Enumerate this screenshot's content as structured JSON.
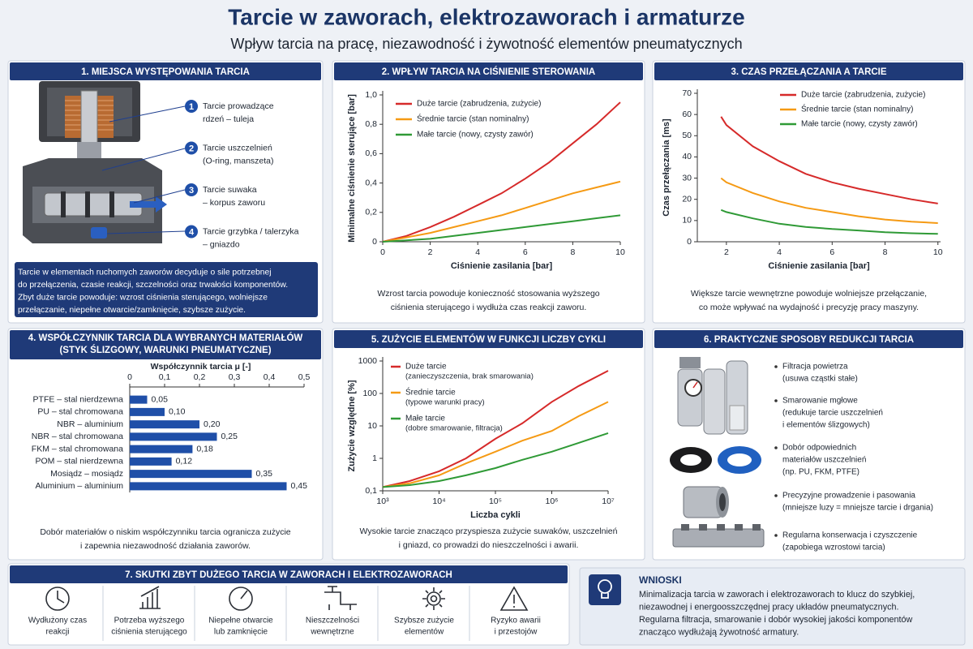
{
  "header": {
    "title": "Tarcie w zaworach, elektrozaworach i armaturze",
    "subtitle": "Wpływ tarcia na pracę, niezawodność i żywotność elementów pneumatycznych"
  },
  "panel1": {
    "title": "1. MIEJSCA WYSTĘPOWANIA TARCIA",
    "items": [
      {
        "number": 1,
        "title": "Tarcie prowadzące",
        "detail": "rdzeń – tuleja"
      },
      {
        "number": 2,
        "title": "Tarcie uszczelnień",
        "detail": "(O-ring, manszeta)"
      },
      {
        "number": 3,
        "title": "Tarcie suwaka",
        "detail": "– korpus zaworu"
      },
      {
        "number": 4,
        "title": "Tarcie grzybka / talerzyka",
        "detail": "– gniazdo"
      }
    ],
    "note": [
      "Tarcie w elementach ruchomych zaworów decyduje o sile potrzebnej",
      "do przełączenia, czasie reakcji, szczelności oraz trwałości komponentów.",
      "Zbyt duże tarcie powoduje: wzrost ciśnienia sterującego, wolniejsze",
      "przełączanie, niepełne otwarcie/zamknięcie, szybsze zużycie."
    ]
  },
  "chart_data": [
    {
      "type": "line",
      "title": "2. WPŁYW TARCIA NA CIŚNIENIE STEROWANIA",
      "xlabel": "Ciśnienie zasilania [bar]",
      "ylabel": "Minimalne ciśnienie sterujące [bar]",
      "x": [
        0,
        1,
        2,
        3,
        4,
        5,
        6,
        7,
        8,
        9,
        10
      ],
      "xlim": [
        0,
        10
      ],
      "xticks": [
        0,
        2,
        4,
        6,
        8,
        10
      ],
      "ylim": [
        0,
        1
      ],
      "yticks": [
        0,
        {
          "value": 0.2,
          "label": "0,2"
        },
        {
          "value": 0.4,
          "label": "0,4"
        },
        {
          "value": 0.6,
          "label": "0,6"
        },
        {
          "value": 0.8,
          "label": "0,8"
        },
        {
          "value": 1,
          "label": "1,0"
        }
      ],
      "legend": "upper left",
      "series": [
        {
          "name": "Duże tarcie (zabrudzenia, zużycie)",
          "color": "#d62a2a",
          "values": [
            0,
            0.04,
            0.1,
            0.17,
            0.25,
            0.33,
            0.43,
            0.54,
            0.67,
            0.8,
            0.95
          ]
        },
        {
          "name": "Średnie tarcie (stan nominalny)",
          "color": "#f59a14",
          "values": [
            0,
            0.03,
            0.06,
            0.1,
            0.14,
            0.18,
            0.23,
            0.28,
            0.33,
            0.37,
            0.41
          ]
        },
        {
          "name": "Małe tarcie (nowy, czysty zawór)",
          "color": "#2f9a36",
          "values": [
            0,
            0.01,
            0.02,
            0.04,
            0.06,
            0.08,
            0.1,
            0.12,
            0.14,
            0.16,
            0.18
          ]
        }
      ],
      "caption": [
        "Wzrost tarcia powoduje konieczność stosowania wyższego",
        "ciśnienia sterującego i wydłuża czas reakcji zaworu."
      ]
    },
    {
      "type": "line",
      "title": "3. CZAS PRZEŁĄCZANIA A TARCIE",
      "xlabel": "Ciśnienie zasilania [bar]",
      "ylabel": "Czas przełączania [ms]",
      "x": [
        1.8,
        2,
        3,
        4,
        5,
        6,
        7,
        8,
        9,
        10
      ],
      "xlim": [
        0.9,
        10.1
      ],
      "xticks": [
        2,
        4,
        6,
        8,
        10
      ],
      "ylim": [
        0,
        70
      ],
      "yticks": [
        0,
        10,
        20,
        30,
        40,
        50,
        60,
        70
      ],
      "legend": "upper center",
      "series": [
        {
          "name": "Duże tarcie (zabrudzenia, zużycie)",
          "color": "#d62a2a",
          "values": [
            59,
            55,
            45,
            38,
            32,
            28,
            25,
            22.5,
            20,
            18
          ]
        },
        {
          "name": "Średnie tarcie (stan nominalny)",
          "color": "#f59a14",
          "values": [
            30,
            28,
            23,
            19,
            16,
            14,
            12,
            10.5,
            9.5,
            8.8
          ]
        },
        {
          "name": "Małe tarcie (nowy, czysty zawór)",
          "color": "#2f9a36",
          "values": [
            15,
            14,
            11,
            8.5,
            7,
            6,
            5.3,
            4.5,
            4,
            3.7
          ]
        }
      ],
      "caption": [
        "Większe tarcie wewnętrzne powoduje wolniejsze przełączanie,",
        "co może wpływać na wydajność i precyzję pracy maszyny."
      ]
    },
    {
      "type": "bar",
      "orientation": "horizontal",
      "title": [
        "4. WSPÓŁCZYNNIK TARCIA DLA WYBRANYCH MATERIAŁÓW",
        "(STYK ŚLIZGOWY, WARUNKI PNEUMATYCZNE)"
      ],
      "xlabel": "Współczynnik tarcia μ [-]",
      "categories": [
        "PTFE – stal nierdzewna",
        "PU – stal chromowana",
        "NBR – aluminium",
        "NBR – stal chromowana",
        "FKM – stal chromowana",
        "POM – stal nierdzewna",
        "Mosiądz – mosiądz",
        "Aluminium – aluminium"
      ],
      "values": [
        0.05,
        0.1,
        0.2,
        0.25,
        0.18,
        0.12,
        0.35,
        0.45
      ],
      "value_labels": [
        "0,05",
        "0,10",
        "0,20",
        "0,25",
        "0,18",
        "0,12",
        "0,35",
        "0,45"
      ],
      "color": "#1f4fa8",
      "xlim": [
        0,
        0.5
      ],
      "xticks": [
        0,
        {
          "value": 0.1,
          "label": "0,1"
        },
        {
          "value": 0.2,
          "label": "0,2"
        },
        {
          "value": 0.3,
          "label": "0,3"
        },
        {
          "value": 0.4,
          "label": "0,4"
        },
        {
          "value": 0.5,
          "label": "0,5"
        }
      ],
      "caption": [
        "Dobór materiałów o niskim współczynniku tarcia ogranicza zużycie",
        "i zapewnia niezawodność działania zaworów."
      ]
    },
    {
      "type": "line",
      "title": "5. ZUŻYCIE ELEMENTÓW W FUNKCJI LICZBY CYKLI",
      "xlabel": "Liczba cykli",
      "ylabel": "Zużycie względne [%]",
      "log_x": true,
      "log_y": true,
      "x": [
        1000,
        3000,
        10000,
        30000,
        100000,
        300000,
        1000000,
        3000000,
        10000000
      ],
      "xlim": [
        1000,
        10000000
      ],
      "xticks": [
        {
          "value": 1000,
          "label": "10³"
        },
        {
          "value": 10000,
          "label": "10⁴"
        },
        {
          "value": 100000,
          "label": "10⁵"
        },
        {
          "value": 1000000,
          "label": "10⁶"
        },
        {
          "value": 10000000,
          "label": "10⁷"
        }
      ],
      "ylim": [
        0.1,
        1000
      ],
      "yticks": [
        {
          "value": 0.1,
          "label": "0,1"
        },
        1,
        10,
        100,
        1000
      ],
      "legend": "upper left",
      "series": [
        {
          "name": "Duże tarcie",
          "description": "(zanieczyszczenia, brak smarowania)",
          "color": "#d62a2a",
          "values": [
            0.13,
            0.2,
            0.4,
            1,
            4,
            12,
            55,
            170,
            500
          ]
        },
        {
          "name": "Średnie tarcie",
          "description": "(typowe warunki pracy)",
          "color": "#f59a14",
          "values": [
            0.13,
            0.17,
            0.3,
            0.7,
            1.6,
            3.5,
            7,
            20,
            55
          ]
        },
        {
          "name": "Małe tarcie",
          "description": "(dobre smarowanie, filtracja)",
          "color": "#2f9a36",
          "values": [
            0.13,
            0.15,
            0.2,
            0.3,
            0.5,
            0.9,
            1.6,
            3,
            6
          ]
        }
      ],
      "caption": [
        "Wysokie tarcie znacząco przyspiesza zużycie suwaków, uszczelnień",
        "i gniazd, co prowadzi do nieszczelności i awarii."
      ]
    }
  ],
  "panel6": {
    "title": "6. PRAKTYCZNE SPOSOBY REDUKCJI TARCIA",
    "items": [
      [
        "Filtracja powietrza",
        "(usuwa cząstki stałe)"
      ],
      [
        "Smarowanie mgłowe",
        "(redukuje tarcie uszczelnień",
        "i elementów ślizgowych)"
      ],
      [
        "Dobór odpowiednich",
        "materiałów uszczelnień",
        "(np. PU, FKM, PTFE)"
      ],
      [
        "Precyzyjne prowadzenie i pasowania",
        "(mniejsze luzy = mniejsze tarcie i drgania)"
      ],
      [
        "Regularna konserwacja i czyszczenie",
        "(zapobiega wzrostowi tarcia)"
      ]
    ]
  },
  "panel7": {
    "title": "7. SKUTKI ZBYT DUŻEGO TARCIA W ZAWORACH I ELEKTROZAWORACH",
    "items": [
      [
        "Wydłużony czas",
        "reakcji"
      ],
      [
        "Potrzeba wyższego",
        "ciśnienia sterującego"
      ],
      [
        "Niepełne otwarcie",
        "lub zamknięcie"
      ],
      [
        "Nieszczelności",
        "wewnętrzne"
      ],
      [
        "Szybsze zużycie",
        "elementów"
      ],
      [
        "Ryzyko awarii",
        "i przestojów"
      ]
    ]
  },
  "conclusions": {
    "title": "WNIOSKI",
    "lines": [
      "Minimalizacja tarcia w zaworach i elektrozaworach to klucz do szybkiej,",
      "niezawodnej i energoosszczędnej pracy układów pneumatycznych.",
      "Regularna filtracja, smarowanie i dobór wysokiej jakości komponentów",
      "znacząco wydłużają żywotność armatury."
    ]
  }
}
